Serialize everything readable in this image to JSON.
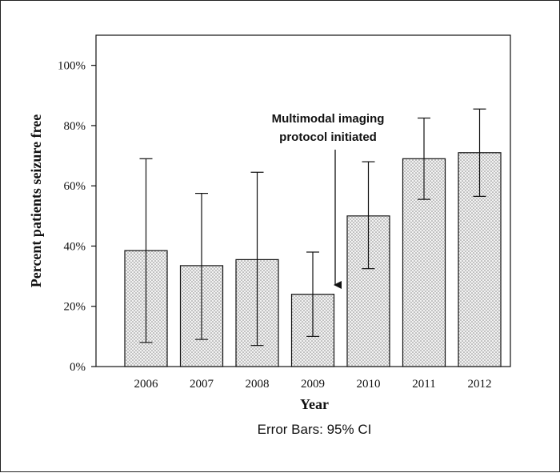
{
  "chart_data": {
    "type": "bar",
    "categories": [
      "2006",
      "2007",
      "2008",
      "2009",
      "2010",
      "2011",
      "2012"
    ],
    "values": [
      38.5,
      33.5,
      35.5,
      24,
      50,
      69,
      71
    ],
    "error_low": [
      8,
      9,
      7,
      10,
      32.5,
      55.5,
      56.5
    ],
    "error_high": [
      69,
      57.5,
      64.5,
      38,
      68,
      82.5,
      85.5
    ],
    "title": "",
    "xlabel": "Year",
    "ylabel": "Percent patients seizure free",
    "ylim": [
      0,
      110
    ],
    "yticks": [
      0,
      20,
      40,
      60,
      80,
      100
    ],
    "ytick_labels": [
      "0%",
      "20%",
      "40%",
      "60%",
      "80%",
      "100%"
    ],
    "grid": false,
    "bar_fill": "stippled gray",
    "annotation": {
      "lines": [
        "Multimodal imaging",
        "protocol initiated"
      ],
      "arrow_category": "2009"
    },
    "footnote": "Error Bars: 95% CI"
  }
}
